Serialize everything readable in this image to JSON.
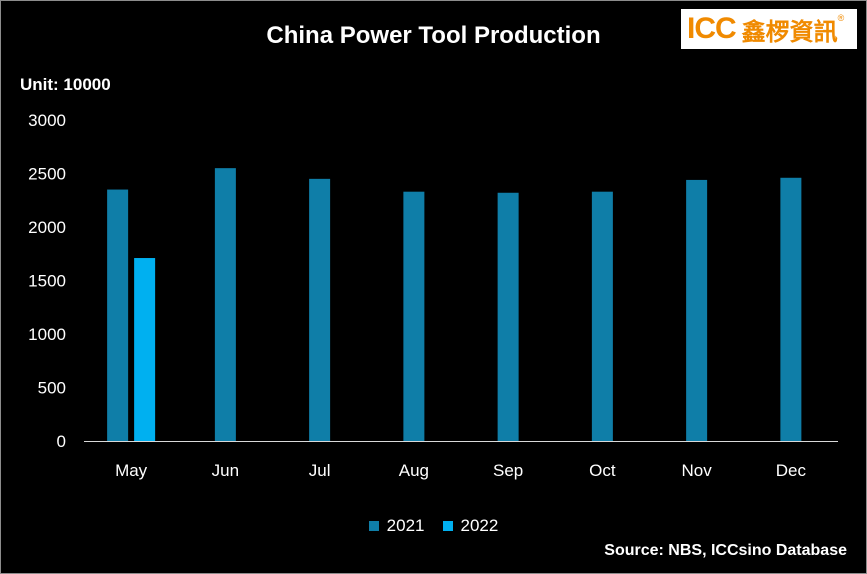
{
  "logo": {
    "icc": "ICC",
    "cn": "鑫椤資訊",
    "reg": "®"
  },
  "chart_data": {
    "type": "bar",
    "title": "China Power Tool Production",
    "unit_label": "Unit: 10000",
    "categories": [
      "May",
      "Jun",
      "Jul",
      "Aug",
      "Sep",
      "Oct",
      "Nov",
      "Dec"
    ],
    "series": [
      {
        "name": "2021",
        "color": "#0f7ea8",
        "values": [
          2350,
          2550,
          2450,
          2330,
          2320,
          2330,
          2440,
          2460
        ]
      },
      {
        "name": "2022",
        "color": "#00b0f0",
        "values": [
          1710,
          null,
          null,
          null,
          null,
          null,
          null,
          null
        ]
      }
    ],
    "ylim": [
      0,
      3000
    ],
    "yticks": [
      0,
      500,
      1000,
      1500,
      2000,
      2500,
      3000
    ],
    "grid": false,
    "legend": "bottom",
    "source": "Source: NBS, ICCsino Database"
  }
}
